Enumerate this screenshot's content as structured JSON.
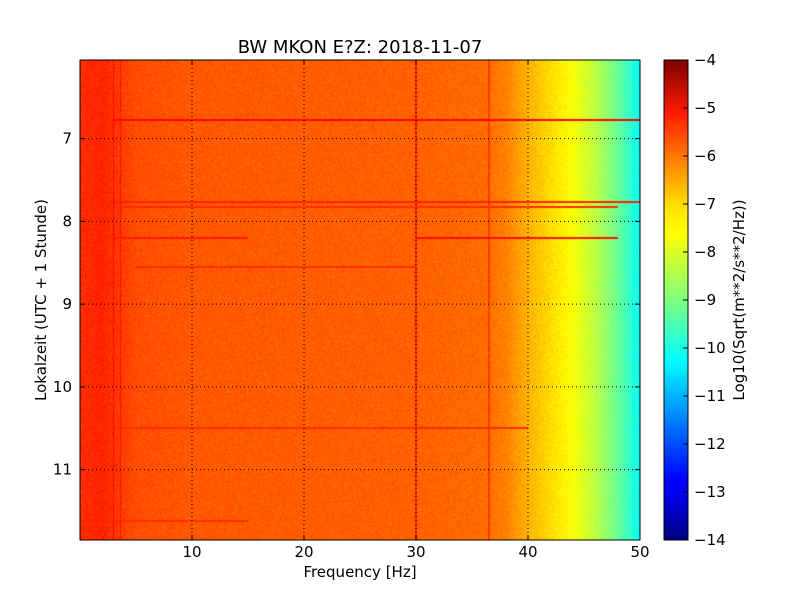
{
  "chart_data": {
    "type": "heatmap",
    "title": "BW MKON E?Z: 2018-11-07",
    "xlabel": "Frequency [Hz]",
    "ylabel": "Lokalzeit (UTC + 1 Stunde)",
    "xlim": [
      0,
      50
    ],
    "ylim": [
      11.85,
      6.05
    ],
    "y_inverted": true,
    "x_ticks": [
      10,
      20,
      30,
      40,
      50
    ],
    "y_ticks": [
      7,
      8,
      9,
      10,
      11
    ],
    "grid": true,
    "colormap": "jet",
    "colorbar": {
      "label": "Log10(Sqrt(m**2/s**2/Hz))",
      "range": [
        -14,
        -4
      ],
      "ticks": [
        -4,
        -5,
        -6,
        -7,
        -8,
        -9,
        -10,
        -11,
        -12,
        -13,
        -14
      ]
    },
    "spectrum_profile": {
      "frequency_hz": [
        0,
        2,
        5,
        10,
        20,
        30,
        36,
        38,
        40,
        42,
        44,
        46,
        48,
        50
      ],
      "log_amplitude": [
        -5.7,
        -5.6,
        -6.0,
        -6.1,
        -6.15,
        -6.2,
        -6.3,
        -6.5,
        -7.0,
        -7.4,
        -7.8,
        -8.4,
        -9.2,
        -10.2
      ]
    },
    "horizontal_lines": [
      {
        "time_h": 6.78,
        "f_start": 3,
        "f_end": 50,
        "value": -5.3
      },
      {
        "time_h": 7.77,
        "f_start": 3,
        "f_end": 50,
        "value": -5.6
      },
      {
        "time_h": 7.83,
        "f_start": 3,
        "f_end": 48,
        "value": -5.7
      },
      {
        "time_h": 8.2,
        "f_start": 30,
        "f_end": 48,
        "value": -5.4
      },
      {
        "time_h": 8.2,
        "f_start": 3,
        "f_end": 15,
        "value": -5.5
      },
      {
        "time_h": 8.55,
        "f_start": 5,
        "f_end": 30,
        "value": -5.7
      },
      {
        "time_h": 10.5,
        "f_start": 0,
        "f_end": 40,
        "value": -5.7
      },
      {
        "time_h": 11.62,
        "f_start": 0,
        "f_end": 15,
        "value": -5.7
      }
    ],
    "vertical_lines": [
      {
        "freq_hz": 3.0,
        "t_start": 6.05,
        "t_end": 11.85,
        "value": -5.3
      },
      {
        "freq_hz": 3.6,
        "t_start": 6.05,
        "t_end": 11.85,
        "value": -5.4
      },
      {
        "freq_hz": 30.0,
        "t_start": 6.05,
        "t_end": 11.85,
        "value": -5.6
      },
      {
        "freq_hz": 36.5,
        "t_start": 6.05,
        "t_end": 11.85,
        "value": -5.8
      }
    ]
  }
}
